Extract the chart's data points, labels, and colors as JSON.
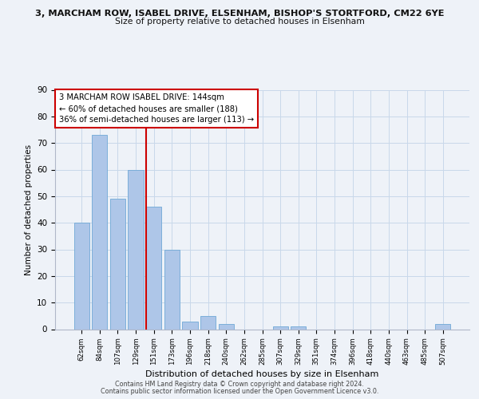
{
  "title_line1": "3, MARCHAM ROW, ISABEL DRIVE, ELSENHAM, BISHOP'S STORTFORD, CM22 6YE",
  "title_line2": "Size of property relative to detached houses in Elsenham",
  "xlabel": "Distribution of detached houses by size in Elsenham",
  "ylabel": "Number of detached properties",
  "bin_labels": [
    "62sqm",
    "84sqm",
    "107sqm",
    "129sqm",
    "151sqm",
    "173sqm",
    "196sqm",
    "218sqm",
    "240sqm",
    "262sqm",
    "285sqm",
    "307sqm",
    "329sqm",
    "351sqm",
    "374sqm",
    "396sqm",
    "418sqm",
    "440sqm",
    "463sqm",
    "485sqm",
    "507sqm"
  ],
  "bar_heights": [
    40,
    73,
    49,
    60,
    46,
    30,
    3,
    5,
    2,
    0,
    0,
    1,
    1,
    0,
    0,
    0,
    0,
    0,
    0,
    0,
    2
  ],
  "bar_color": "#aec6e8",
  "bar_edge_color": "#6fa8d6",
  "vline_x_index": 4,
  "vline_color": "#cc0000",
  "ylim": [
    0,
    90
  ],
  "yticks": [
    0,
    10,
    20,
    30,
    40,
    50,
    60,
    70,
    80,
    90
  ],
  "grid_color": "#c8d8ea",
  "annotation_text": "3 MARCHAM ROW ISABEL DRIVE: 144sqm\n← 60% of detached houses are smaller (188)\n36% of semi-detached houses are larger (113) →",
  "annotation_box_color": "#ffffff",
  "annotation_box_edge": "#cc0000",
  "footer_line1": "Contains HM Land Registry data © Crown copyright and database right 2024.",
  "footer_line2": "Contains public sector information licensed under the Open Government Licence v3.0.",
  "bg_color": "#eef2f8",
  "plot_bg_color": "#eef2f8"
}
